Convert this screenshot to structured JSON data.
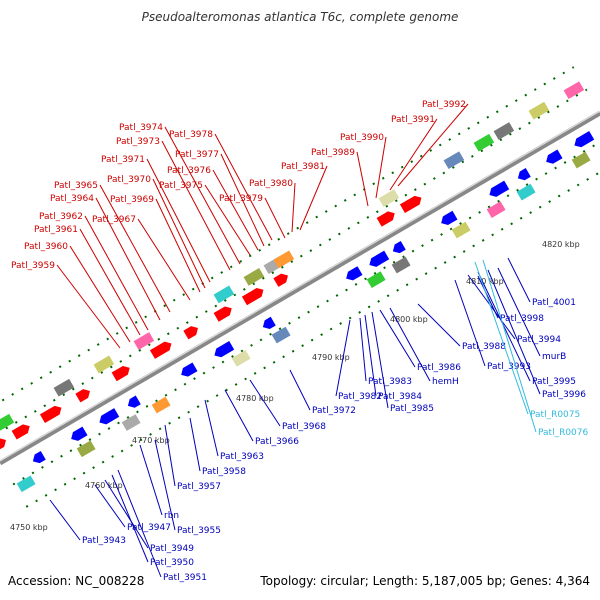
{
  "title": "Pseudoalteromonas atlantica T6c, complete genome",
  "footer": {
    "accession": "Accession: NC_008228",
    "stats": "Topology: circular; Length: 5,187,005 bp; Genes: 4,364"
  },
  "colors": {
    "forward_label": "#cc0000",
    "reverse_label": "#0000bb",
    "rna_label": "#33bbdd",
    "forward_gene": "#ff0000",
    "reverse_gene": "#0000ff",
    "backbone": "#999999",
    "tick": "#006600"
  },
  "ticks": [
    "4750 kbp",
    "4760 kbp",
    "4770 kbp",
    "4780 kbp",
    "4790 kbp",
    "4800 kbp",
    "4810 kbp",
    "4820 kbp"
  ],
  "forward_labels": [
    "Patl_3959",
    "Patl_3960",
    "Patl_3961",
    "Patl_3962",
    "Patl_3964",
    "Patl_3965",
    "Patl_3967",
    "Patl_3969",
    "Patl_3970",
    "Patl_3971",
    "Patl_3973",
    "Patl_3974",
    "Patl_3975",
    "Patl_3976",
    "Patl_3977",
    "Patl_3978",
    "Patl_3979",
    "Patl_3980",
    "Patl_3981",
    "Patl_3989",
    "Patl_3990",
    "Patl_3991",
    "Patl_3992"
  ],
  "reverse_labels": [
    "Patl_3943",
    "Patl_3947",
    "Patl_3949",
    "Patl_3950",
    "Patl_3951",
    "rbn",
    "Patl_3955",
    "Patl_3957",
    "Patl_3958",
    "Patl_3963",
    "Patl_3966",
    "Patl_3968",
    "Patl_3972",
    "Patl_3982",
    "Patl_3983",
    "Patl_3984",
    "Patl_3985",
    "hemH",
    "Patl_3986",
    "Patl_3988",
    "Patl_3993",
    "Patl_3994",
    "Patl_3995",
    "Patl_3996",
    "murB",
    "Patl_3998",
    "Patl_4001"
  ],
  "rna_labels": [
    "Patl_R0075",
    "Patl_R0076"
  ]
}
